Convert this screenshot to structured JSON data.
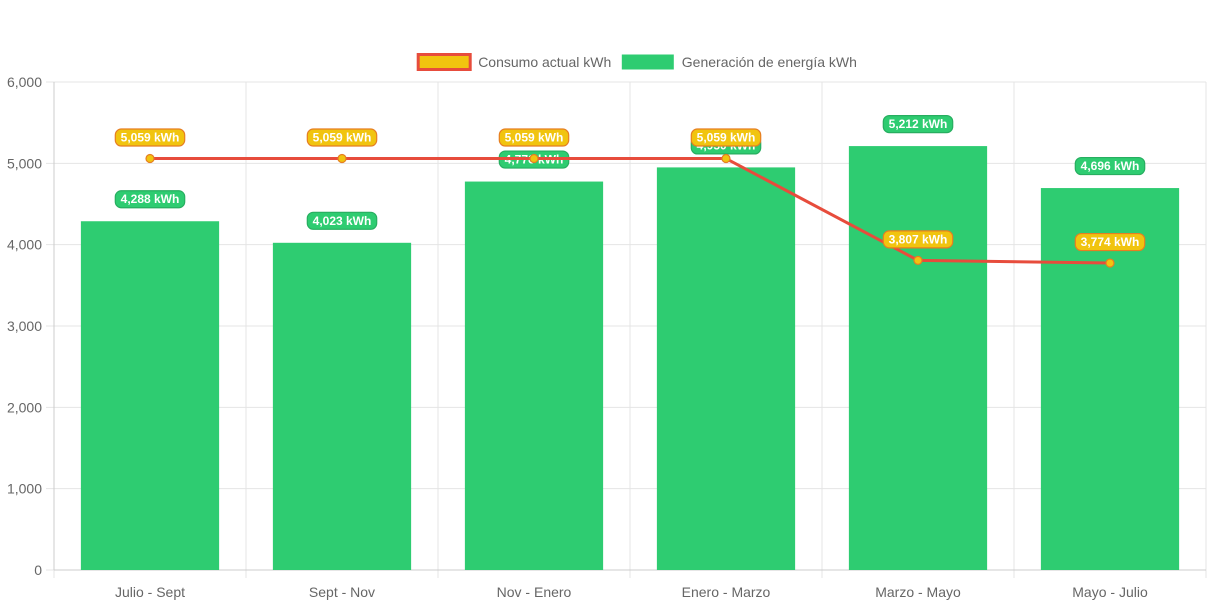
{
  "chart_data": {
    "type": "bar",
    "categories": [
      "Julio - Sept",
      "Sept - Nov",
      "Nov - Enero",
      "Enero - Marzo",
      "Marzo - Mayo",
      "Mayo - Julio"
    ],
    "series": [
      {
        "name": "Generación de energía kWh",
        "type": "bar",
        "color": "#2ecc71",
        "values": [
          4288,
          4023,
          4776,
          4950,
          5212,
          4696
        ],
        "labels": [
          "4,288 kWh",
          "4,023 kWh",
          "4,776 kWh",
          "4,950 kWh",
          "5,212 kWh",
          "4,696 kWh"
        ]
      },
      {
        "name": "Consumo actual kWh",
        "type": "line",
        "color": "#e74c3c",
        "point_color": "#f1c40f",
        "values": [
          5059,
          5059,
          5059,
          5059,
          3807,
          3774
        ],
        "labels": [
          "5,059 kWh",
          "5,059 kWh",
          "5,059 kWh",
          "5,059 kWh",
          "3,807 kWh",
          "3,774 kWh"
        ]
      }
    ],
    "ylim": [
      0,
      6000
    ],
    "yticks": [
      "0",
      "1,000",
      "2,000",
      "3,000",
      "4,000",
      "5,000",
      "6,000"
    ],
    "grid": true,
    "legend_position": "top-center",
    "xlabel": "",
    "ylabel": "",
    "title": ""
  }
}
